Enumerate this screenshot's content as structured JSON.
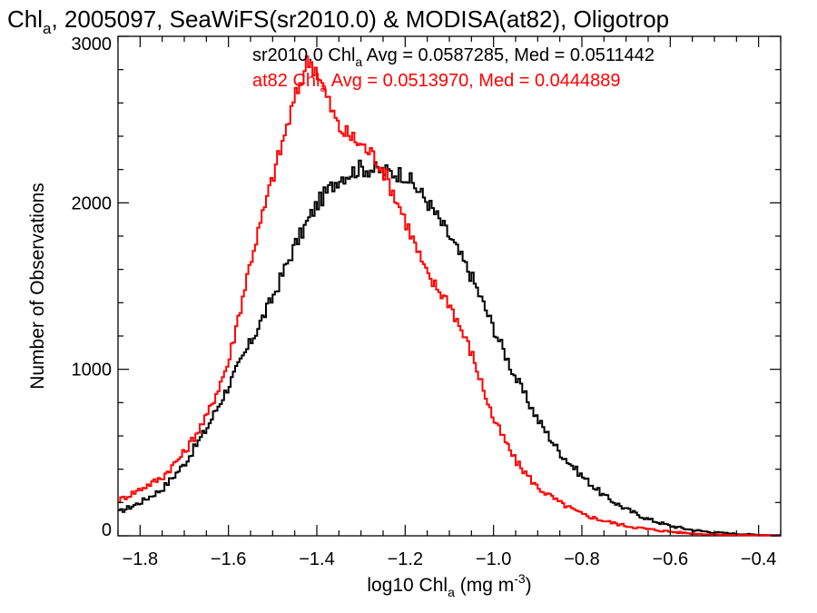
{
  "chart_data": {
    "type": "line",
    "title": "Chl",
    "title_sub": "a",
    "title_rest": ", 2005097, SeaWiFS(sr2010.0) & MODISA(at82), Oligotrop",
    "xlabel_pre": "log10 Chl",
    "xlabel_sub": "a",
    "xlabel_post": " (mg m",
    "xlabel_sup": "-3",
    "xlabel_close": ")",
    "ylabel": "Number of Observations",
    "xlim": [
      -1.85,
      -0.35
    ],
    "ylim": [
      0,
      3000
    ],
    "x_ticks": [
      -1.8,
      -1.6,
      -1.4,
      -1.2,
      -1.0,
      -0.8,
      -0.6,
      -0.4
    ],
    "x_tick_labels": [
      "−1.8",
      "−1.6",
      "−1.4",
      "−1.2",
      "−1.0",
      "−0.8",
      "−0.6",
      "−0.4"
    ],
    "y_ticks": [
      0,
      1000,
      2000,
      3000
    ],
    "y_tick_labels": [
      "0",
      "1000",
      "2000",
      "3000"
    ],
    "grid": false,
    "legend": [
      {
        "pre": "sr2010.0 Chl",
        "sub": "a",
        "post": " Avg = 0.0587285, Med = 0.0511442",
        "color": "#000000"
      },
      {
        "pre": "at82 Chl",
        "sub": "a",
        "post": " Avg = 0.0513970, Med = 0.0444889",
        "color": "#ff0000"
      }
    ],
    "series": [
      {
        "color": "#000000",
        "x": [
          -1.85,
          -1.8,
          -1.75,
          -1.7,
          -1.65,
          -1.6,
          -1.55,
          -1.5,
          -1.45,
          -1.4,
          -1.35,
          -1.3,
          -1.25,
          -1.2,
          -1.15,
          -1.1,
          -1.05,
          -1.0,
          -0.95,
          -0.9,
          -0.85,
          -0.8,
          -0.75,
          -0.7,
          -0.65,
          -0.6,
          -0.55,
          -0.5,
          -0.45,
          -0.4,
          -0.35
        ],
        "y": [
          140,
          200,
          280,
          430,
          640,
          900,
          1160,
          1430,
          1740,
          1990,
          2150,
          2210,
          2190,
          2170,
          2010,
          1800,
          1560,
          1250,
          950,
          700,
          500,
          360,
          240,
          160,
          100,
          60,
          35,
          20,
          12,
          6,
          3
        ]
      },
      {
        "color": "#ff0000",
        "x": [
          -1.85,
          -1.8,
          -1.75,
          -1.7,
          -1.65,
          -1.6,
          -1.55,
          -1.5,
          -1.45,
          -1.42,
          -1.4,
          -1.38,
          -1.35,
          -1.3,
          -1.27,
          -1.25,
          -1.2,
          -1.15,
          -1.1,
          -1.05,
          -1.0,
          -0.95,
          -0.9,
          -0.85,
          -0.8,
          -0.75,
          -0.7,
          -0.65,
          -0.6,
          -0.55,
          -0.5,
          -0.45,
          -0.4,
          -0.35
        ],
        "y": [
          210,
          280,
          350,
          500,
          710,
          1040,
          1650,
          2150,
          2620,
          2860,
          2800,
          2650,
          2450,
          2350,
          2280,
          2200,
          1900,
          1560,
          1400,
          1100,
          700,
          450,
          290,
          200,
          130,
          90,
          60,
          40,
          25,
          14,
          8,
          5,
          3,
          2
        ]
      }
    ]
  }
}
